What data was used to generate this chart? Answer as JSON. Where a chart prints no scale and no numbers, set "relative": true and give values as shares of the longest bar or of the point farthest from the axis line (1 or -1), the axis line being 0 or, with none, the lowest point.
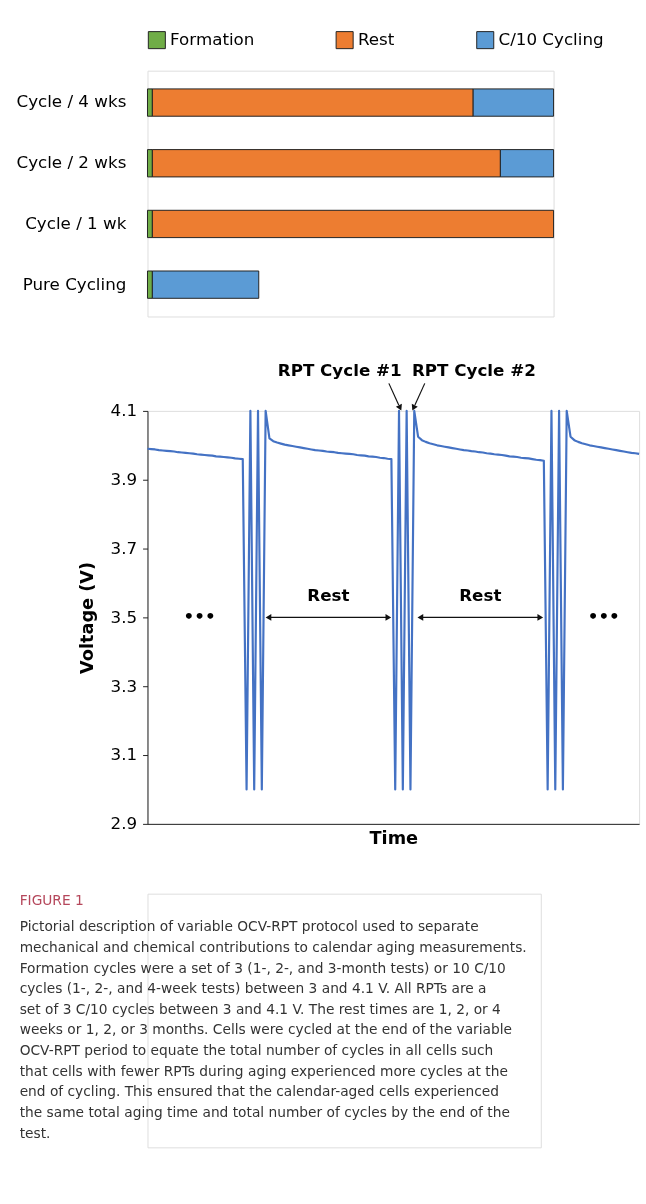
{
  "chart_data": [
    {
      "type": "bar",
      "orientation": "horizontal",
      "stacked": true,
      "relative": true,
      "legend": "top",
      "categories": [
        "Cycle / 4 wks",
        "Cycle / 2 wks",
        "Cycle / 1 wk",
        "Pure Cycling"
      ],
      "series": [
        {
          "name": "Formation",
          "color": "#70ad47",
          "values": [
            0.012,
            0.012,
            0.012,
            0.012
          ]
        },
        {
          "name": "Rest",
          "color": "#ed7d31",
          "values": [
            0.79,
            0.857,
            0.988,
            null
          ]
        },
        {
          "name": "C/10 Cycling",
          "color": "#5b9bd5",
          "values": [
            0.198,
            0.131,
            null,
            0.262
          ]
        }
      ]
    },
    {
      "type": "line",
      "xlabel": "Time",
      "ylabel": "Voltage (V)",
      "ylim": [
        2.9,
        4.1
      ],
      "yticks": [
        2.9,
        3.1,
        3.3,
        3.5,
        3.7,
        3.9,
        4.1
      ],
      "grid": false,
      "line_style": "solid",
      "categories": [
        null,
        null,
        null,
        null,
        null,
        null,
        null,
        null,
        null,
        null,
        null,
        null,
        null,
        null,
        null,
        null,
        null,
        null,
        null,
        null,
        null,
        null,
        null,
        null,
        null,
        null,
        null,
        null,
        null,
        null,
        null,
        null,
        null,
        null,
        null,
        null,
        null,
        null,
        null,
        null,
        null,
        null,
        null,
        null,
        null,
        null,
        null,
        null,
        null,
        null,
        null,
        null,
        null,
        null,
        null,
        null,
        null,
        null,
        null,
        null,
        null,
        null,
        null,
        null,
        null,
        null,
        null,
        null,
        null,
        null,
        null,
        null,
        null,
        null,
        null,
        null,
        null,
        null,
        null,
        null,
        null,
        null,
        null,
        null,
        null,
        null,
        null,
        null,
        null,
        null,
        null,
        null,
        null,
        null,
        null,
        null,
        null,
        null,
        null,
        null,
        null,
        null,
        null,
        null,
        null,
        null,
        null,
        null,
        null,
        null,
        null,
        null,
        null,
        null,
        null,
        null,
        null,
        null,
        null,
        null,
        null,
        null,
        null,
        null,
        null,
        null,
        null,
        null,
        null,
        null
      ],
      "series": [
        {
          "color": "#4472c4",
          "values": [
            3.99,
            3.989,
            3.988,
            3.986,
            3.985,
            3.984,
            3.983,
            3.982,
            3.98,
            3.979,
            3.978,
            3.977,
            3.976,
            3.974,
            3.973,
            3.972,
            3.971,
            3.97,
            3.968,
            3.967,
            3.966,
            3.965,
            3.964,
            3.962,
            3.961,
            3.96,
            3.0,
            4.1,
            3.0,
            4.1,
            3.0,
            4.1,
            4.02,
            4.012,
            4.008,
            4.005,
            4.002,
            4.0,
            3.998,
            3.996,
            3.994,
            3.992,
            3.99,
            3.988,
            3.986,
            3.985,
            3.984,
            3.982,
            3.981,
            3.98,
            3.978,
            3.977,
            3.976,
            3.975,
            3.974,
            3.972,
            3.971,
            3.97,
            3.968,
            3.967,
            3.966,
            3.964,
            3.963,
            3.961,
            3.96,
            3.0,
            4.1,
            3.0,
            4.1,
            3.0,
            4.1,
            4.025,
            4.015,
            4.01,
            4.006,
            4.003,
            4.0,
            3.998,
            3.996,
            3.994,
            3.992,
            3.99,
            3.988,
            3.986,
            3.985,
            3.983,
            3.982,
            3.98,
            3.979,
            3.977,
            3.976,
            3.974,
            3.973,
            3.972,
            3.97,
            3.968,
            3.967,
            3.966,
            3.964,
            3.963,
            3.962,
            3.96,
            3.958,
            3.957,
            3.955,
            3.0,
            4.1,
            3.0,
            4.1,
            3.0,
            4.1,
            4.025,
            4.015,
            4.01,
            4.006,
            4.003,
            4.0,
            3.998,
            3.996,
            3.994,
            3.992,
            3.99,
            3.988,
            3.986,
            3.984,
            3.982,
            3.98,
            3.978,
            3.977,
            3.975
          ]
        }
      ],
      "annotations": [
        "RPT Cycle #1",
        "RPT Cycle #2",
        "Rest",
        "Rest",
        "•••",
        "•••",
        "FIGURE 1",
        "Pictorial description of variable OCV-RPT protocol used to separate mechanical and chemical contributions to calendar aging measurements. Formation cycles were a set of 3 (1-, 2-, and 3-month tests) or 10 C/10 cycles (1-, 2-, and 4-week tests) between 3 and 4.1 V. All RPTs are a set of 3 C/10 cycles between 3 and 4.1 V. The rest times are 1, 2, or 4 weeks or 1, 2, or 3 months. Cells were cycled at the end of the variable OCV-RPT period to equate the total number of cycles in all cells such that cells with fewer RPTs during aging experienced more cycles at the end of cycling. This ensured that the calendar-aged cells experienced the same total aging time and total number of cycles by the end of the test."
      ]
    }
  ]
}
